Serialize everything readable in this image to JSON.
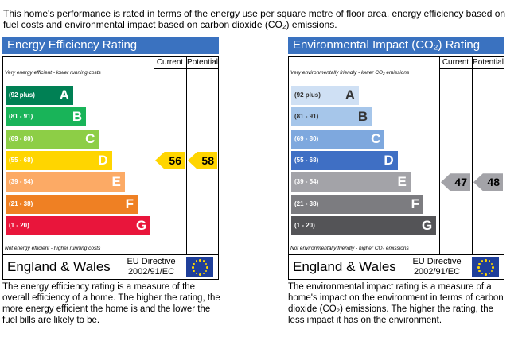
{
  "intro": "This home's performance is rated in terms of the energy use per square metre of floor area, energy efficiency based on fuel costs and environmental impact based on carbon dioxide (CO₂) emissions.",
  "panels": [
    {
      "title": "Energy Efficiency Rating",
      "col_current": "Current",
      "col_potential": "Potential",
      "top_note": "Very energy efficient - lower running costs",
      "bottom_note": "Not energy efficient - higher running costs",
      "bands": [
        {
          "range": "(92 plus)",
          "letter": "A",
          "color": "#008054"
        },
        {
          "range": "(81 - 91)",
          "letter": "B",
          "color": "#19b459"
        },
        {
          "range": "(69 - 80)",
          "letter": "C",
          "color": "#8dce46"
        },
        {
          "range": "(55 - 68)",
          "letter": "D",
          "color": "#ffd500"
        },
        {
          "range": "(39 - 54)",
          "letter": "E",
          "color": "#fcaa65"
        },
        {
          "range": "(21 - 38)",
          "letter": "F",
          "color": "#ef8023"
        },
        {
          "range": "(1 - 20)",
          "letter": "G",
          "color": "#e9153b"
        }
      ],
      "current": 56,
      "potential": 58,
      "arrow_color": "#ffd500",
      "region": "England & Wales",
      "directive": [
        "EU Directive",
        "2002/91/EC"
      ],
      "description": "The energy efficiency rating is a measure of the overall efficiency of a home. The higher the rating, the more energy efficient the home is and the lower the fuel bills are likely to be."
    },
    {
      "title": "Environmental Impact (CO₂) Rating",
      "col_current": "Current",
      "col_potential": "Potential",
      "top_note": "Very environmentally friendly - lower CO₂ emissions",
      "bottom_note": "Not environmentally friendly - higher CO₂ emissions",
      "bands": [
        {
          "range": "(92 plus)",
          "letter": "A",
          "color": "#cfe0f4"
        },
        {
          "range": "(81 - 91)",
          "letter": "B",
          "color": "#a6c6ea"
        },
        {
          "range": "(69 - 80)",
          "letter": "C",
          "color": "#7ea8de"
        },
        {
          "range": "(55 - 68)",
          "letter": "D",
          "color": "#3f6fc4"
        },
        {
          "range": "(39 - 54)",
          "letter": "E",
          "color": "#a3a3a8"
        },
        {
          "range": "(21 - 38)",
          "letter": "F",
          "color": "#7c7c80"
        },
        {
          "range": "(1 - 20)",
          "letter": "G",
          "color": "#545457"
        }
      ],
      "current": 47,
      "potential": 48,
      "arrow_color": "#a3a3a8",
      "region": "England & Wales",
      "directive": [
        "EU Directive",
        "2002/91/EC"
      ],
      "description": "The environmental impact rating is a measure of a home's impact on the environment in terms of carbon dioxide (CO₂) emissions. The higher the rating, the less impact it has on the environment."
    }
  ]
}
